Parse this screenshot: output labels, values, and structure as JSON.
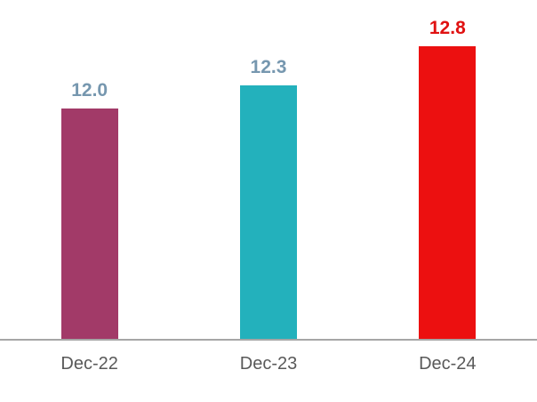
{
  "chart_data": {
    "type": "bar",
    "categories": [
      "Dec-22",
      "Dec-23",
      "Dec-24"
    ],
    "values": [
      12.0,
      12.3,
      12.8
    ],
    "data_labels": [
      "12.0",
      "12.3",
      "12.8"
    ],
    "bar_colors": [
      "#A23A68",
      "#23B1BC",
      "#EC1010"
    ],
    "data_label_colors": [
      "#7697AF",
      "#7697AF",
      "#E01111"
    ],
    "x_tick_label_color": "#595959",
    "axis_line_color": "#A6A6A6",
    "title": "",
    "xlabel": "",
    "ylabel": "",
    "ylim": [
      9.0,
      13.4
    ],
    "y_axis_visible": false,
    "gridlines": false,
    "legend": "none",
    "background_color": "#FFFFFF"
  }
}
